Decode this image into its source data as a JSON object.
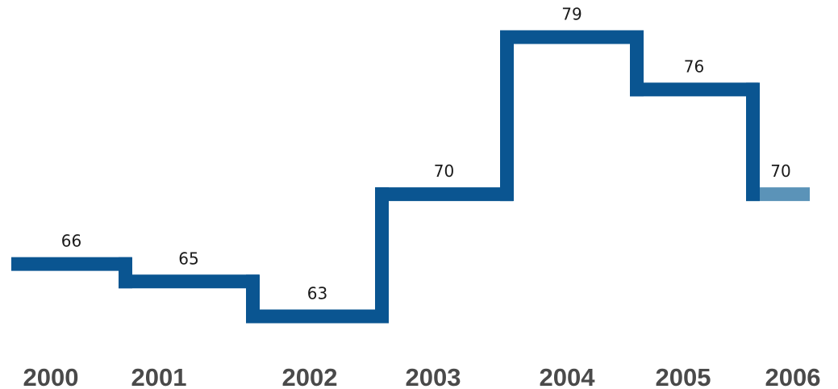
{
  "colors": {
    "line": "#0a5591",
    "last_segment": "#5b93b8",
    "value_label": "#1a1a1a",
    "year_label": "#4a4a4a"
  },
  "chart_data": {
    "type": "line",
    "style": "step",
    "title": "",
    "xlabel": "",
    "ylabel": "",
    "categories": [
      "2000",
      "2001",
      "2002",
      "2003",
      "2004",
      "2005",
      "2006"
    ],
    "values": [
      66,
      65,
      63,
      70,
      79,
      76,
      70
    ],
    "data_labels": [
      "66",
      "65",
      "63",
      "70",
      "79",
      "76",
      "70"
    ],
    "grid": false,
    "legend": "none",
    "last_segment_lighter": true
  }
}
